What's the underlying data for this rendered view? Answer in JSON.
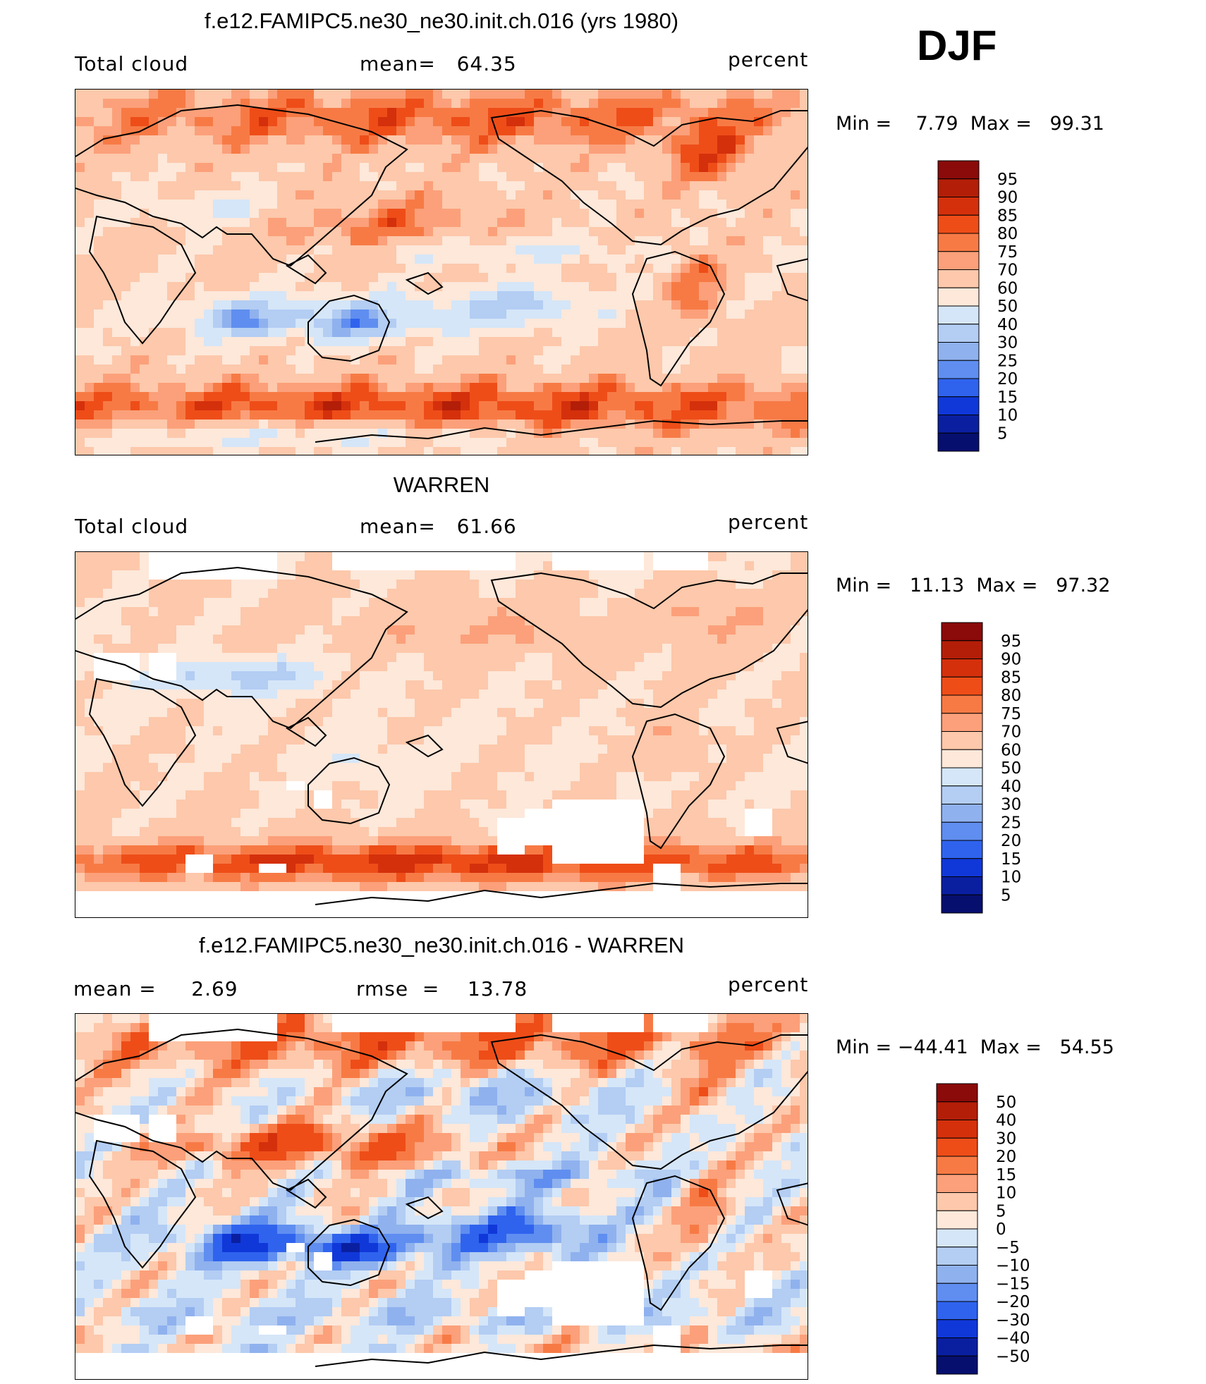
{
  "season": "DJF",
  "panels": [
    {
      "title": "f.e12.FAMIPC5.ne30_ne30.init.ch.016 (yrs 1980)",
      "left_label": "Total cloud",
      "center_label": "mean=   64.35",
      "right_label": "percent",
      "minmax": "Min =    7.79  Max =   99.31",
      "kind": "model"
    },
    {
      "title": "WARREN",
      "left_label": "Total cloud",
      "center_label": "mean=   61.66",
      "right_label": "percent",
      "minmax": "Min =   11.13  Max =   97.32",
      "kind": "obs"
    },
    {
      "title": "f.e12.FAMIPC5.ne30_ne30.init.ch.016 - WARREN",
      "left_label": "mean =     2.69",
      "center_label": "rmse  =    13.78",
      "right_label": "percent",
      "minmax": "Min = −44.41  Max =   54.55",
      "kind": "diff"
    }
  ],
  "chart_data": [
    {
      "type": "heatmap",
      "title": "f.e12.FAMIPC5.ne30_ne30.init.ch.016 (yrs 1980)",
      "variable": "Total cloud",
      "units": "percent",
      "mean": 64.35,
      "min": 7.79,
      "max": 99.31,
      "colorbar_levels": [
        "95",
        "90",
        "85",
        "80",
        "75",
        "70",
        "60",
        "50",
        "40",
        "30",
        "25",
        "20",
        "15",
        "10",
        "5"
      ]
    },
    {
      "type": "heatmap",
      "title": "WARREN",
      "variable": "Total cloud",
      "units": "percent",
      "mean": 61.66,
      "min": 11.13,
      "max": 97.32,
      "colorbar_levels": [
        "95",
        "90",
        "85",
        "80",
        "75",
        "70",
        "60",
        "50",
        "40",
        "30",
        "25",
        "20",
        "15",
        "10",
        "5"
      ]
    },
    {
      "type": "heatmap",
      "title": "f.e12.FAMIPC5.ne30_ne30.init.ch.016 - WARREN",
      "units": "percent",
      "mean": 2.69,
      "rmse": 13.78,
      "min": -44.41,
      "max": 54.55,
      "colorbar_levels": [
        "50",
        "40",
        "30",
        "20",
        "15",
        "10",
        "5",
        "0",
        "−5",
        "−10",
        "−15",
        "−20",
        "−30",
        "−40",
        "−50"
      ]
    }
  ],
  "colors": {
    "abs_palette": [
      "#8b0a0a",
      "#b31e08",
      "#d4300c",
      "#ee4d18",
      "#f77a45",
      "#fba07a",
      "#fdc8ab",
      "#fde8da",
      "#d5e6f8",
      "#b3cdf3",
      "#8fb1ee",
      "#5f8ef0",
      "#2f63ee",
      "#1038d9",
      "#0a1fa0",
      "#060f6e"
    ],
    "diff_palette": [
      "#8b0a0a",
      "#b31e08",
      "#d4300c",
      "#ee4d18",
      "#f77a45",
      "#fba07a",
      "#fdc8ab",
      "#fde8da",
      "#d5e6f8",
      "#b3cdf3",
      "#8fb1ee",
      "#5f8ef0",
      "#2f63ee",
      "#1038d9",
      "#0a1fa0",
      "#060f6e"
    ]
  }
}
